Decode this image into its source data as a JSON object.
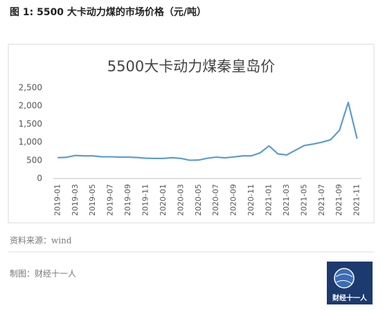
{
  "header": {
    "title": "图 1: 5500 大卡动力煤的市场价格（元/吨）"
  },
  "chart_data": {
    "type": "line",
    "title": "5500大卡动力煤秦皇岛价",
    "categories": [
      "2019-01",
      null,
      "2019-03",
      null,
      "2019-05",
      null,
      "2019-07",
      null,
      "2019-09",
      null,
      "2019-11",
      null,
      "2020-01",
      null,
      "2020-03",
      null,
      "2020-05",
      null,
      "2020-07",
      null,
      "2020-09",
      null,
      "2020-11",
      null,
      "2021-01",
      null,
      "2021-03",
      null,
      "2021-05",
      null,
      "2021-07",
      null,
      "2021-09",
      null,
      "2021-11"
    ],
    "values": [
      575,
      585,
      635,
      625,
      625,
      600,
      600,
      590,
      590,
      580,
      560,
      555,
      555,
      575,
      555,
      505,
      510,
      560,
      590,
      570,
      595,
      625,
      625,
      710,
      900,
      680,
      650,
      780,
      910,
      950,
      1000,
      1070,
      1330,
      2100,
      1100
    ],
    "color": "#5b9bd5",
    "ylim": [
      0,
      2500
    ],
    "yticks": [
      0,
      500,
      {
        "value": 1000,
        "label": "1,000"
      },
      {
        "value": 1500,
        "label": "1,500"
      },
      {
        "value": 2000,
        "label": "2,000"
      },
      {
        "value": 2500,
        "label": "2,500"
      }
    ],
    "grid": false
  },
  "footer": {
    "source": "资料来源：wind",
    "credit": "制图：财经十一人",
    "logo_text": "财经十一人"
  }
}
